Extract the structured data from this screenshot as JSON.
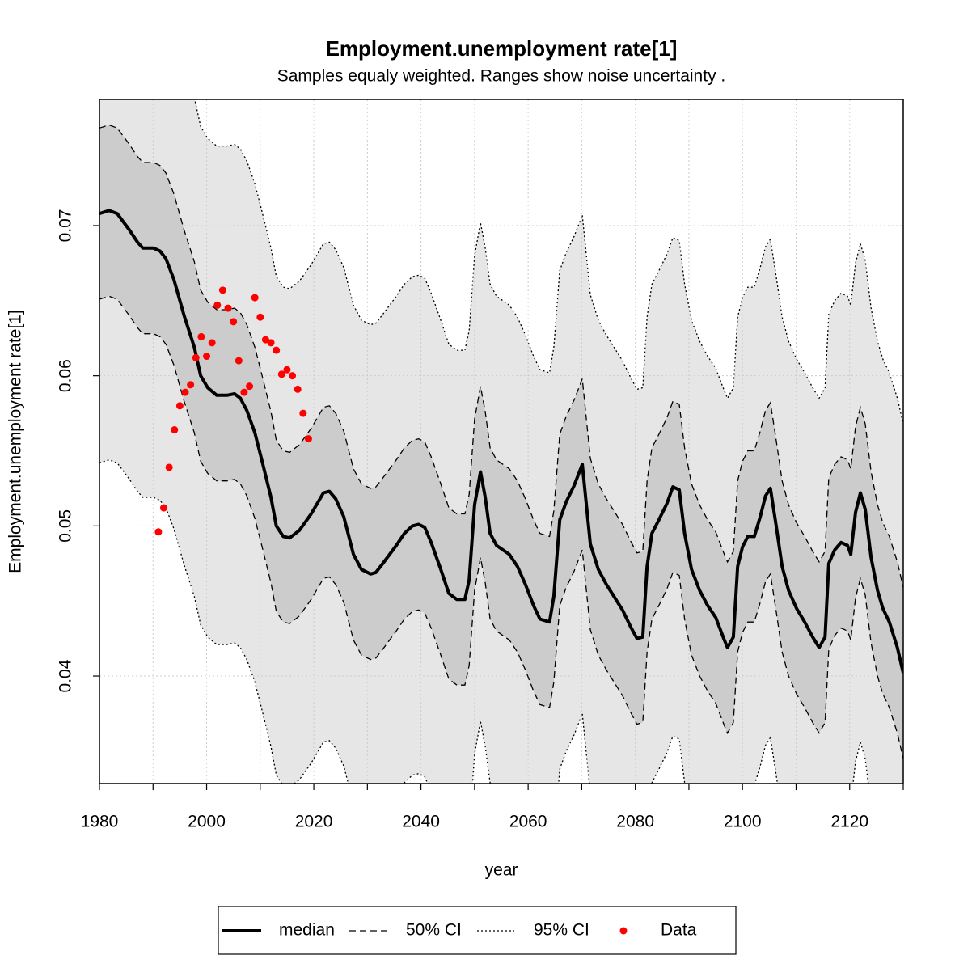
{
  "chart_data": {
    "type": "line",
    "title": "Employment.unemployment rate[1]",
    "subtitle": "Samples equaly weighted. Ranges show  noise uncertainty .",
    "x_label": "year",
    "y_label": "Employment.unemployment rate[1]",
    "xlim": [
      1980,
      2130
    ],
    "ylim": [
      0.03284,
      0.0784
    ],
    "xticks": [
      1980,
      2000,
      2020,
      2040,
      2060,
      2080,
      2100,
      2120
    ],
    "x_minor_ticks": [
      1990,
      2010,
      2030,
      2050,
      2070,
      2090,
      2110,
      2130
    ],
    "yticks": [
      0.04,
      0.05,
      0.06,
      0.07
    ],
    "grid": true,
    "x": [
      1980,
      1981.8,
      1983.3,
      1985.6,
      1987.1,
      1988.1,
      1990.1,
      1991.3,
      1992.4,
      1993.9,
      1995.8,
      1997.7,
      1998.9,
      2000.2,
      2001.9,
      2003.8,
      2005.2,
      2006.3,
      2007.5,
      2009.0,
      2010.5,
      2012.0,
      2013.0,
      2014.3,
      2015.5,
      2017.3,
      2019.5,
      2021.8,
      2022.9,
      2024.1,
      2025.6,
      2027.4,
      2028.9,
      2030.6,
      2031.6,
      2033.1,
      2035.4,
      2036.9,
      2038.4,
      2039.6,
      2040.7,
      2041.9,
      2043.7,
      2045.2,
      2046.7,
      2048.2,
      2049.0,
      2050.0,
      2051.1,
      2052.0,
      2052.9,
      2054.1,
      2056.5,
      2058.0,
      2059.5,
      2061.0,
      2062.2,
      2064.0,
      2064.8,
      2065.9,
      2067.1,
      2068.6,
      2070.1,
      2071.6,
      2073.1,
      2074.6,
      2077.6,
      2079.1,
      2080.3,
      2081.4,
      2082.2,
      2083.1,
      2084.4,
      2085.9,
      2087.0,
      2088.2,
      2089.2,
      2090.5,
      2092.0,
      2093.5,
      2095.0,
      2096.5,
      2097.2,
      2098.3,
      2099.1,
      2100.0,
      2101.0,
      2102.2,
      2103.3,
      2104.3,
      2105.2,
      2106.3,
      2107.4,
      2108.6,
      2110.1,
      2111.6,
      2113.1,
      2114.3,
      2115.4,
      2116.1,
      2117.2,
      2118.4,
      2119.6,
      2120.2,
      2121.1,
      2122.0,
      2122.9,
      2124.0,
      2125.2,
      2126.2,
      2127.4,
      2128.9,
      2130.0
    ],
    "bands": [
      {
        "name": "95% CI",
        "fill": "#e6e6e6",
        "dash": "dotted",
        "upper": [
          0.0874,
          0.0876,
          0.0874,
          0.0863,
          0.0855,
          0.0851,
          0.0851,
          0.0849,
          0.0844,
          0.083,
          0.0806,
          0.0785,
          0.0766,
          0.0758,
          0.0753,
          0.0753,
          0.0754,
          0.0751,
          0.0743,
          0.0728,
          0.0707,
          0.0685,
          0.0666,
          0.0659,
          0.0658,
          0.0663,
          0.0674,
          0.0688,
          0.0689,
          0.0684,
          0.0672,
          0.0647,
          0.0637,
          0.0634,
          0.0635,
          0.0642,
          0.0653,
          0.0661,
          0.0666,
          0.0667,
          0.0665,
          0.0655,
          0.0637,
          0.0621,
          0.0617,
          0.0617,
          0.063,
          0.068,
          0.0702,
          0.0685,
          0.0661,
          0.0653,
          0.0647,
          0.0639,
          0.0627,
          0.0613,
          0.0604,
          0.0602,
          0.0619,
          0.067,
          0.0682,
          0.0693,
          0.0707,
          0.0654,
          0.0637,
          0.0627,
          0.061,
          0.0599,
          0.0591,
          0.0592,
          0.0639,
          0.0661,
          0.067,
          0.0681,
          0.0692,
          0.069,
          0.0661,
          0.0637,
          0.0623,
          0.0613,
          0.0605,
          0.0591,
          0.0585,
          0.0592,
          0.0639,
          0.0652,
          0.0659,
          0.0659,
          0.0672,
          0.0686,
          0.0691,
          0.0666,
          0.0639,
          0.0623,
          0.0611,
          0.0602,
          0.0592,
          0.0585,
          0.0592,
          0.0641,
          0.065,
          0.0655,
          0.0653,
          0.0647,
          0.0675,
          0.0688,
          0.0677,
          0.0645,
          0.0623,
          0.0611,
          0.0602,
          0.0585,
          0.0568
        ],
        "lower": [
          0.0542,
          0.0544,
          0.0542,
          0.0531,
          0.0523,
          0.0519,
          0.0519,
          0.0517,
          0.0512,
          0.0498,
          0.0474,
          0.0453,
          0.0434,
          0.0426,
          0.0421,
          0.0421,
          0.0422,
          0.0419,
          0.0411,
          0.0396,
          0.0375,
          0.0353,
          0.0334,
          0.0327,
          0.0326,
          0.0331,
          0.0342,
          0.0356,
          0.0357,
          0.0352,
          0.034,
          0.0315,
          0.0305,
          0.0302,
          0.0303,
          0.031,
          0.0321,
          0.0329,
          0.0334,
          0.0335,
          0.0333,
          0.0323,
          0.0305,
          0.0289,
          0.0285,
          0.0285,
          0.0298,
          0.0348,
          0.037,
          0.0353,
          0.0329,
          0.0321,
          0.0315,
          0.0307,
          0.0295,
          0.0281,
          0.0272,
          0.027,
          0.0287,
          0.0338,
          0.035,
          0.0361,
          0.0375,
          0.0322,
          0.0305,
          0.0295,
          0.0278,
          0.0267,
          0.0259,
          0.026,
          0.0307,
          0.0329,
          0.0338,
          0.0349,
          0.036,
          0.0358,
          0.0329,
          0.0305,
          0.0291,
          0.0281,
          0.0273,
          0.0259,
          0.0253,
          0.026,
          0.0307,
          0.032,
          0.0327,
          0.0327,
          0.034,
          0.0354,
          0.0359,
          0.0334,
          0.0307,
          0.0291,
          0.0279,
          0.027,
          0.026,
          0.0253,
          0.026,
          0.0309,
          0.0318,
          0.0323,
          0.0321,
          0.0315,
          0.0343,
          0.0356,
          0.0345,
          0.0313,
          0.0291,
          0.0279,
          0.027,
          0.0253,
          0.0236
        ]
      },
      {
        "name": "50% CI",
        "fill": "#cccccc",
        "dash": "dashed",
        "upper": [
          0.0765,
          0.0767,
          0.0765,
          0.0754,
          0.0746,
          0.0742,
          0.0742,
          0.074,
          0.0735,
          0.0721,
          0.0697,
          0.0676,
          0.0657,
          0.0649,
          0.0644,
          0.0644,
          0.0645,
          0.0642,
          0.0634,
          0.0619,
          0.0598,
          0.0576,
          0.0557,
          0.055,
          0.0549,
          0.0554,
          0.0565,
          0.0579,
          0.058,
          0.0575,
          0.0563,
          0.0538,
          0.0528,
          0.0525,
          0.0526,
          0.0533,
          0.0544,
          0.0552,
          0.0557,
          0.0558,
          0.0556,
          0.0546,
          0.0528,
          0.0512,
          0.0508,
          0.0508,
          0.0521,
          0.0571,
          0.0593,
          0.0576,
          0.0552,
          0.0544,
          0.0538,
          0.053,
          0.0518,
          0.0504,
          0.0495,
          0.0493,
          0.051,
          0.0561,
          0.0573,
          0.0584,
          0.0598,
          0.0545,
          0.0528,
          0.0518,
          0.0501,
          0.049,
          0.0482,
          0.0483,
          0.053,
          0.0552,
          0.0561,
          0.0572,
          0.0583,
          0.0581,
          0.0552,
          0.0528,
          0.0514,
          0.0504,
          0.0496,
          0.0482,
          0.0476,
          0.0483,
          0.053,
          0.0543,
          0.055,
          0.055,
          0.0563,
          0.0577,
          0.0582,
          0.0557,
          0.053,
          0.0514,
          0.0502,
          0.0493,
          0.0483,
          0.0476,
          0.0483,
          0.0532,
          0.0541,
          0.0546,
          0.0544,
          0.0538,
          0.0566,
          0.0579,
          0.0568,
          0.0536,
          0.0514,
          0.0502,
          0.0493,
          0.0476,
          0.0459
        ],
        "lower": [
          0.0651,
          0.0653,
          0.0651,
          0.064,
          0.0632,
          0.0628,
          0.0628,
          0.0626,
          0.0621,
          0.0607,
          0.0583,
          0.0562,
          0.0543,
          0.0535,
          0.053,
          0.053,
          0.0531,
          0.0528,
          0.052,
          0.0505,
          0.0484,
          0.0462,
          0.0443,
          0.0436,
          0.0435,
          0.044,
          0.0451,
          0.0465,
          0.0466,
          0.0461,
          0.0449,
          0.0424,
          0.0414,
          0.0411,
          0.0412,
          0.0419,
          0.043,
          0.0438,
          0.0443,
          0.0444,
          0.0442,
          0.0432,
          0.0414,
          0.0398,
          0.0394,
          0.0394,
          0.0407,
          0.0457,
          0.0479,
          0.0462,
          0.0438,
          0.043,
          0.0424,
          0.0416,
          0.0404,
          0.039,
          0.0381,
          0.0379,
          0.0396,
          0.0447,
          0.0459,
          0.047,
          0.0484,
          0.0431,
          0.0414,
          0.0404,
          0.0387,
          0.0376,
          0.0368,
          0.0369,
          0.0416,
          0.0438,
          0.0447,
          0.0458,
          0.0469,
          0.0467,
          0.0438,
          0.0414,
          0.04,
          0.039,
          0.0382,
          0.0368,
          0.0362,
          0.0369,
          0.0416,
          0.0429,
          0.0436,
          0.0436,
          0.0449,
          0.0463,
          0.0468,
          0.0443,
          0.0416,
          0.04,
          0.0388,
          0.0379,
          0.0369,
          0.0362,
          0.0369,
          0.0418,
          0.0427,
          0.0432,
          0.043,
          0.0424,
          0.0452,
          0.0465,
          0.0454,
          0.0422,
          0.04,
          0.0388,
          0.0379,
          0.0362,
          0.0345
        ]
      }
    ],
    "series": [
      {
        "name": "median",
        "color": "#000000",
        "values": [
          0.0708,
          0.071,
          0.0708,
          0.0697,
          0.0689,
          0.0685,
          0.0685,
          0.0683,
          0.0678,
          0.0664,
          0.064,
          0.0619,
          0.06,
          0.0592,
          0.0587,
          0.0587,
          0.0588,
          0.0585,
          0.0577,
          0.0562,
          0.0541,
          0.0519,
          0.05,
          0.0493,
          0.0492,
          0.0497,
          0.0508,
          0.0522,
          0.0523,
          0.0518,
          0.0506,
          0.0481,
          0.0471,
          0.0468,
          0.0469,
          0.0476,
          0.0487,
          0.0495,
          0.05,
          0.0501,
          0.0499,
          0.0489,
          0.0471,
          0.0455,
          0.0451,
          0.0451,
          0.0464,
          0.0514,
          0.0536,
          0.0519,
          0.0495,
          0.0487,
          0.0481,
          0.0473,
          0.0461,
          0.0447,
          0.0438,
          0.0436,
          0.0453,
          0.0504,
          0.0516,
          0.0527,
          0.0541,
          0.0488,
          0.0471,
          0.0461,
          0.0444,
          0.0433,
          0.0425,
          0.0426,
          0.0473,
          0.0495,
          0.0504,
          0.0515,
          0.0526,
          0.0524,
          0.0495,
          0.0471,
          0.0457,
          0.0447,
          0.0439,
          0.0425,
          0.0419,
          0.0426,
          0.0473,
          0.0486,
          0.0493,
          0.0493,
          0.0506,
          0.052,
          0.0525,
          0.05,
          0.0473,
          0.0457,
          0.0445,
          0.0436,
          0.0426,
          0.0419,
          0.0426,
          0.0475,
          0.0484,
          0.0489,
          0.0487,
          0.0481,
          0.0509,
          0.0522,
          0.0511,
          0.0479,
          0.0457,
          0.0445,
          0.0436,
          0.0419,
          0.0402
        ]
      },
      {
        "name": "Data",
        "color": "#ff0000",
        "x": [
          1991,
          1992,
          1993,
          1994,
          1995,
          1996,
          1997,
          1998,
          1999,
          2000,
          2001,
          2002,
          2003,
          2004,
          2005,
          2006,
          2007,
          2008,
          2009,
          2010,
          2011,
          2012,
          2013,
          2014,
          2015,
          2016,
          2017,
          2018,
          2019
        ],
        "values": [
          0.0496,
          0.0512,
          0.0539,
          0.0564,
          0.058,
          0.0589,
          0.0594,
          0.0612,
          0.0626,
          0.0613,
          0.0622,
          0.0647,
          0.0657,
          0.0645,
          0.0636,
          0.061,
          0.0589,
          0.0593,
          0.0652,
          0.0639,
          0.0624,
          0.0622,
          0.0617,
          0.0601,
          0.0604,
          0.06,
          0.0591,
          0.0575,
          0.0558
        ]
      }
    ]
  }
}
